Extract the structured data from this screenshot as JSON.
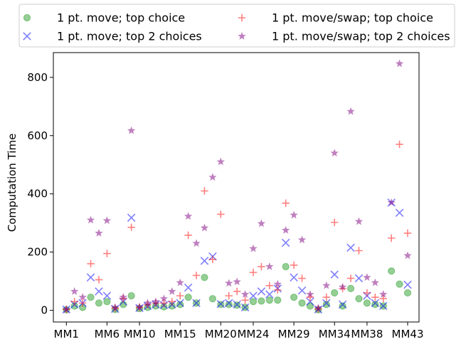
{
  "chart_data": {
    "type": "scatter",
    "title": "",
    "xlabel": "",
    "ylabel": "Computation Time",
    "ylim": [
      -40,
      885
    ],
    "yticks": [
      0,
      200,
      400,
      600,
      800
    ],
    "xticks": [
      "MM1",
      "MM6",
      "MM10",
      "MM15",
      "MM20",
      "MM24",
      "MM29",
      "MM34",
      "MM38",
      "MM43"
    ],
    "xtick_positions": [
      1,
      6,
      10,
      15,
      20,
      24,
      29,
      34,
      38,
      43
    ],
    "xlim": [
      -0.6,
      44.4
    ],
    "grid": false,
    "legend_position": "top",
    "series": [
      {
        "name": "1 pt. move; top choice",
        "marker": "circle",
        "color": "#2ca02c",
        "x": [
          1,
          2,
          3,
          4,
          5,
          6,
          7,
          8,
          9,
          10,
          11,
          12,
          13,
          14,
          15,
          16,
          17,
          18,
          19,
          20,
          21,
          22,
          23,
          24,
          25,
          26,
          27,
          28,
          29,
          30,
          31,
          32,
          33,
          34,
          35,
          36,
          37,
          38,
          39,
          40,
          41,
          42,
          43
        ],
        "y": [
          2,
          15,
          10,
          45,
          25,
          30,
          3,
          20,
          50,
          6,
          10,
          15,
          12,
          15,
          20,
          45,
          25,
          113,
          40,
          20,
          20,
          18,
          10,
          30,
          32,
          35,
          35,
          150,
          45,
          25,
          15,
          2,
          20,
          60,
          15,
          75,
          40,
          25,
          20,
          15,
          135,
          90,
          60
        ]
      },
      {
        "name": "1 pt. move; top 2 choices",
        "marker": "x",
        "color": "#0000ff",
        "x": [
          1,
          2,
          3,
          4,
          5,
          6,
          7,
          8,
          9,
          10,
          11,
          12,
          13,
          14,
          15,
          16,
          17,
          18,
          19,
          20,
          21,
          22,
          23,
          24,
          25,
          26,
          27,
          28,
          29,
          30,
          31,
          32,
          33,
          34,
          35,
          36,
          37,
          38,
          39,
          40,
          41,
          42,
          43
        ],
        "y": [
          3,
          20,
          25,
          113,
          65,
          50,
          5,
          30,
          318,
          8,
          15,
          20,
          18,
          20,
          25,
          78,
          25,
          170,
          185,
          22,
          25,
          20,
          10,
          50,
          65,
          55,
          75,
          232,
          113,
          68,
          30,
          3,
          25,
          123,
          20,
          215,
          110,
          50,
          25,
          15,
          370,
          335,
          88
        ]
      },
      {
        "name": "1 pt. move/swap; top choice",
        "marker": "plus",
        "color": "#ff0000",
        "x": [
          1,
          2,
          3,
          4,
          5,
          6,
          7,
          8,
          9,
          10,
          11,
          12,
          13,
          14,
          15,
          16,
          17,
          18,
          19,
          20,
          21,
          22,
          23,
          24,
          25,
          26,
          27,
          28,
          29,
          30,
          31,
          32,
          33,
          34,
          35,
          36,
          37,
          38,
          39,
          40,
          41,
          42,
          43
        ],
        "y": [
          3,
          30,
          25,
          160,
          105,
          195,
          8,
          40,
          285,
          10,
          20,
          25,
          25,
          30,
          50,
          258,
          120,
          410,
          175,
          330,
          50,
          65,
          35,
          130,
          150,
          85,
          70,
          368,
          155,
          110,
          45,
          5,
          45,
          302,
          75,
          110,
          205,
          60,
          45,
          40,
          248,
          570,
          265
        ]
      },
      {
        "name": "1 pt. move/swap; top 2 choices",
        "marker": "star",
        "color": "#800080",
        "x": [
          1,
          2,
          3,
          4,
          5,
          6,
          7,
          8,
          9,
          10,
          11,
          12,
          13,
          14,
          15,
          16,
          17,
          18,
          19,
          20,
          21,
          22,
          23,
          24,
          25,
          26,
          27,
          28,
          29,
          30,
          31,
          32,
          33,
          34,
          35,
          36,
          37,
          38,
          39,
          40,
          41,
          42,
          43
        ],
        "y": [
          3,
          65,
          45,
          310,
          265,
          308,
          10,
          45,
          617,
          12,
          25,
          30,
          40,
          65,
          95,
          323,
          230,
          283,
          457,
          510,
          93,
          98,
          55,
          212,
          298,
          150,
          90,
          275,
          327,
          242,
          55,
          8,
          85,
          540,
          80,
          683,
          305,
          113,
          95,
          55,
          370,
          847,
          188
        ]
      }
    ]
  }
}
